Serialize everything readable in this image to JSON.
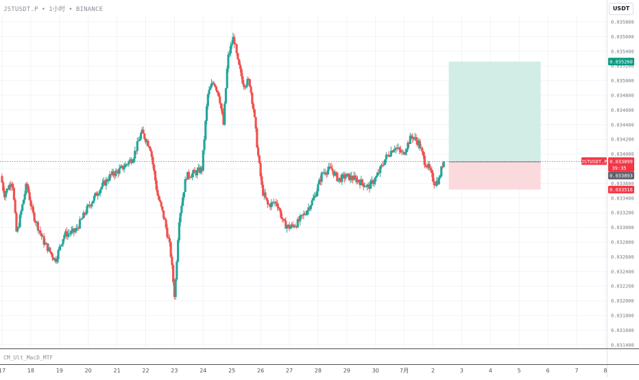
{
  "header": {
    "symbol": "JSTUSDT.P",
    "interval": "1小时",
    "exchange": "BINANCE",
    "separator": "•"
  },
  "currency_button": "USDT",
  "indicator_label": "CM_Ult_MacD_MTF",
  "colors": {
    "up": "#26a69a",
    "down": "#ef5350",
    "target_zone": "#d2ede6",
    "stop_zone": "#fbdade",
    "target_label": "#089981",
    "stop_label": "#f23645",
    "current_label": "#f23645",
    "entry_label": "#5d606b",
    "grid": "#f0f3fa",
    "axis_line": "#505050"
  },
  "price_labels": {
    "target": "0.035260",
    "current": "0.033899",
    "countdown": "39:35",
    "entry": "0.033893",
    "stop": "0.033516",
    "symbol_tag": "JSTUSDT.P"
  },
  "chart_data": {
    "type": "candlestick",
    "y_ticks": [
      "0.035800",
      "0.035600",
      "0.035400",
      "0.035200",
      "0.035000",
      "0.034800",
      "0.034600",
      "0.034400",
      "0.034200",
      "0.034000",
      "0.033800",
      "0.033600",
      "0.033400",
      "0.033200",
      "0.033000",
      "0.032800",
      "0.032600",
      "0.032400",
      "0.032200",
      "0.032000",
      "0.031800",
      "0.031600",
      "0.031400"
    ],
    "ylim": [
      0.03136,
      0.03588
    ],
    "x_tick_labels": [
      "17",
      "18",
      "19",
      "20",
      "21",
      "22",
      "23",
      "24",
      "25",
      "26",
      "27",
      "28",
      "29",
      "30",
      "7月",
      "2",
      "3",
      "4",
      "5",
      "6",
      "7",
      "8"
    ],
    "x_tick_day_index": [
      0,
      1,
      2,
      3,
      4,
      5,
      6,
      7,
      8,
      9,
      10,
      11,
      12,
      13,
      14,
      15,
      16,
      17,
      18,
      19,
      20,
      21
    ],
    "day_domain": [
      0,
      21
    ],
    "anchors": [
      [
        0.0,
        0.0337
      ],
      [
        0.12,
        0.03345
      ],
      [
        0.4,
        0.03365
      ],
      [
        0.55,
        0.0329
      ],
      [
        0.9,
        0.0336
      ],
      [
        1.1,
        0.0332
      ],
      [
        1.5,
        0.0328
      ],
      [
        1.9,
        0.03255
      ],
      [
        2.2,
        0.0329
      ],
      [
        2.6,
        0.03295
      ],
      [
        3.0,
        0.03325
      ],
      [
        3.4,
        0.0335
      ],
      [
        3.8,
        0.0337
      ],
      [
        4.2,
        0.0338
      ],
      [
        4.6,
        0.03395
      ],
      [
        4.9,
        0.0343
      ],
      [
        5.2,
        0.0341
      ],
      [
        5.45,
        0.03345
      ],
      [
        5.7,
        0.0331
      ],
      [
        5.9,
        0.0327
      ],
      [
        6.05,
        0.03205
      ],
      [
        6.2,
        0.0331
      ],
      [
        6.45,
        0.0337
      ],
      [
        6.8,
        0.03375
      ],
      [
        7.0,
        0.0338
      ],
      [
        7.2,
        0.0348
      ],
      [
        7.4,
        0.035
      ],
      [
        7.6,
        0.0348
      ],
      [
        7.75,
        0.0344
      ],
      [
        7.9,
        0.0353
      ],
      [
        8.1,
        0.0356
      ],
      [
        8.25,
        0.03525
      ],
      [
        8.45,
        0.03495
      ],
      [
        8.65,
        0.035
      ],
      [
        8.8,
        0.0346
      ],
      [
        8.95,
        0.034
      ],
      [
        9.1,
        0.0335
      ],
      [
        9.3,
        0.0333
      ],
      [
        9.6,
        0.03335
      ],
      [
        9.85,
        0.03305
      ],
      [
        10.05,
        0.033
      ],
      [
        10.3,
        0.03305
      ],
      [
        10.6,
        0.0332
      ],
      [
        10.9,
        0.0334
      ],
      [
        11.2,
        0.03375
      ],
      [
        11.5,
        0.0338
      ],
      [
        11.75,
        0.03365
      ],
      [
        12.0,
        0.0337
      ],
      [
        12.4,
        0.03365
      ],
      [
        12.8,
        0.03355
      ],
      [
        13.1,
        0.0337
      ],
      [
        13.4,
        0.03395
      ],
      [
        13.7,
        0.0341
      ],
      [
        14.0,
        0.034
      ],
      [
        14.3,
        0.03425
      ],
      [
        14.55,
        0.03415
      ],
      [
        14.75,
        0.0339
      ],
      [
        14.9,
        0.0338
      ],
      [
        15.1,
        0.0336
      ],
      [
        15.25,
        0.03365
      ],
      [
        15.4,
        0.0339
      ]
    ],
    "trade": {
      "start_day": 15.55,
      "end_day": 18.75,
      "target": 0.03526,
      "entry": 0.033893,
      "stop": 0.033516,
      "current": 0.033899
    }
  }
}
